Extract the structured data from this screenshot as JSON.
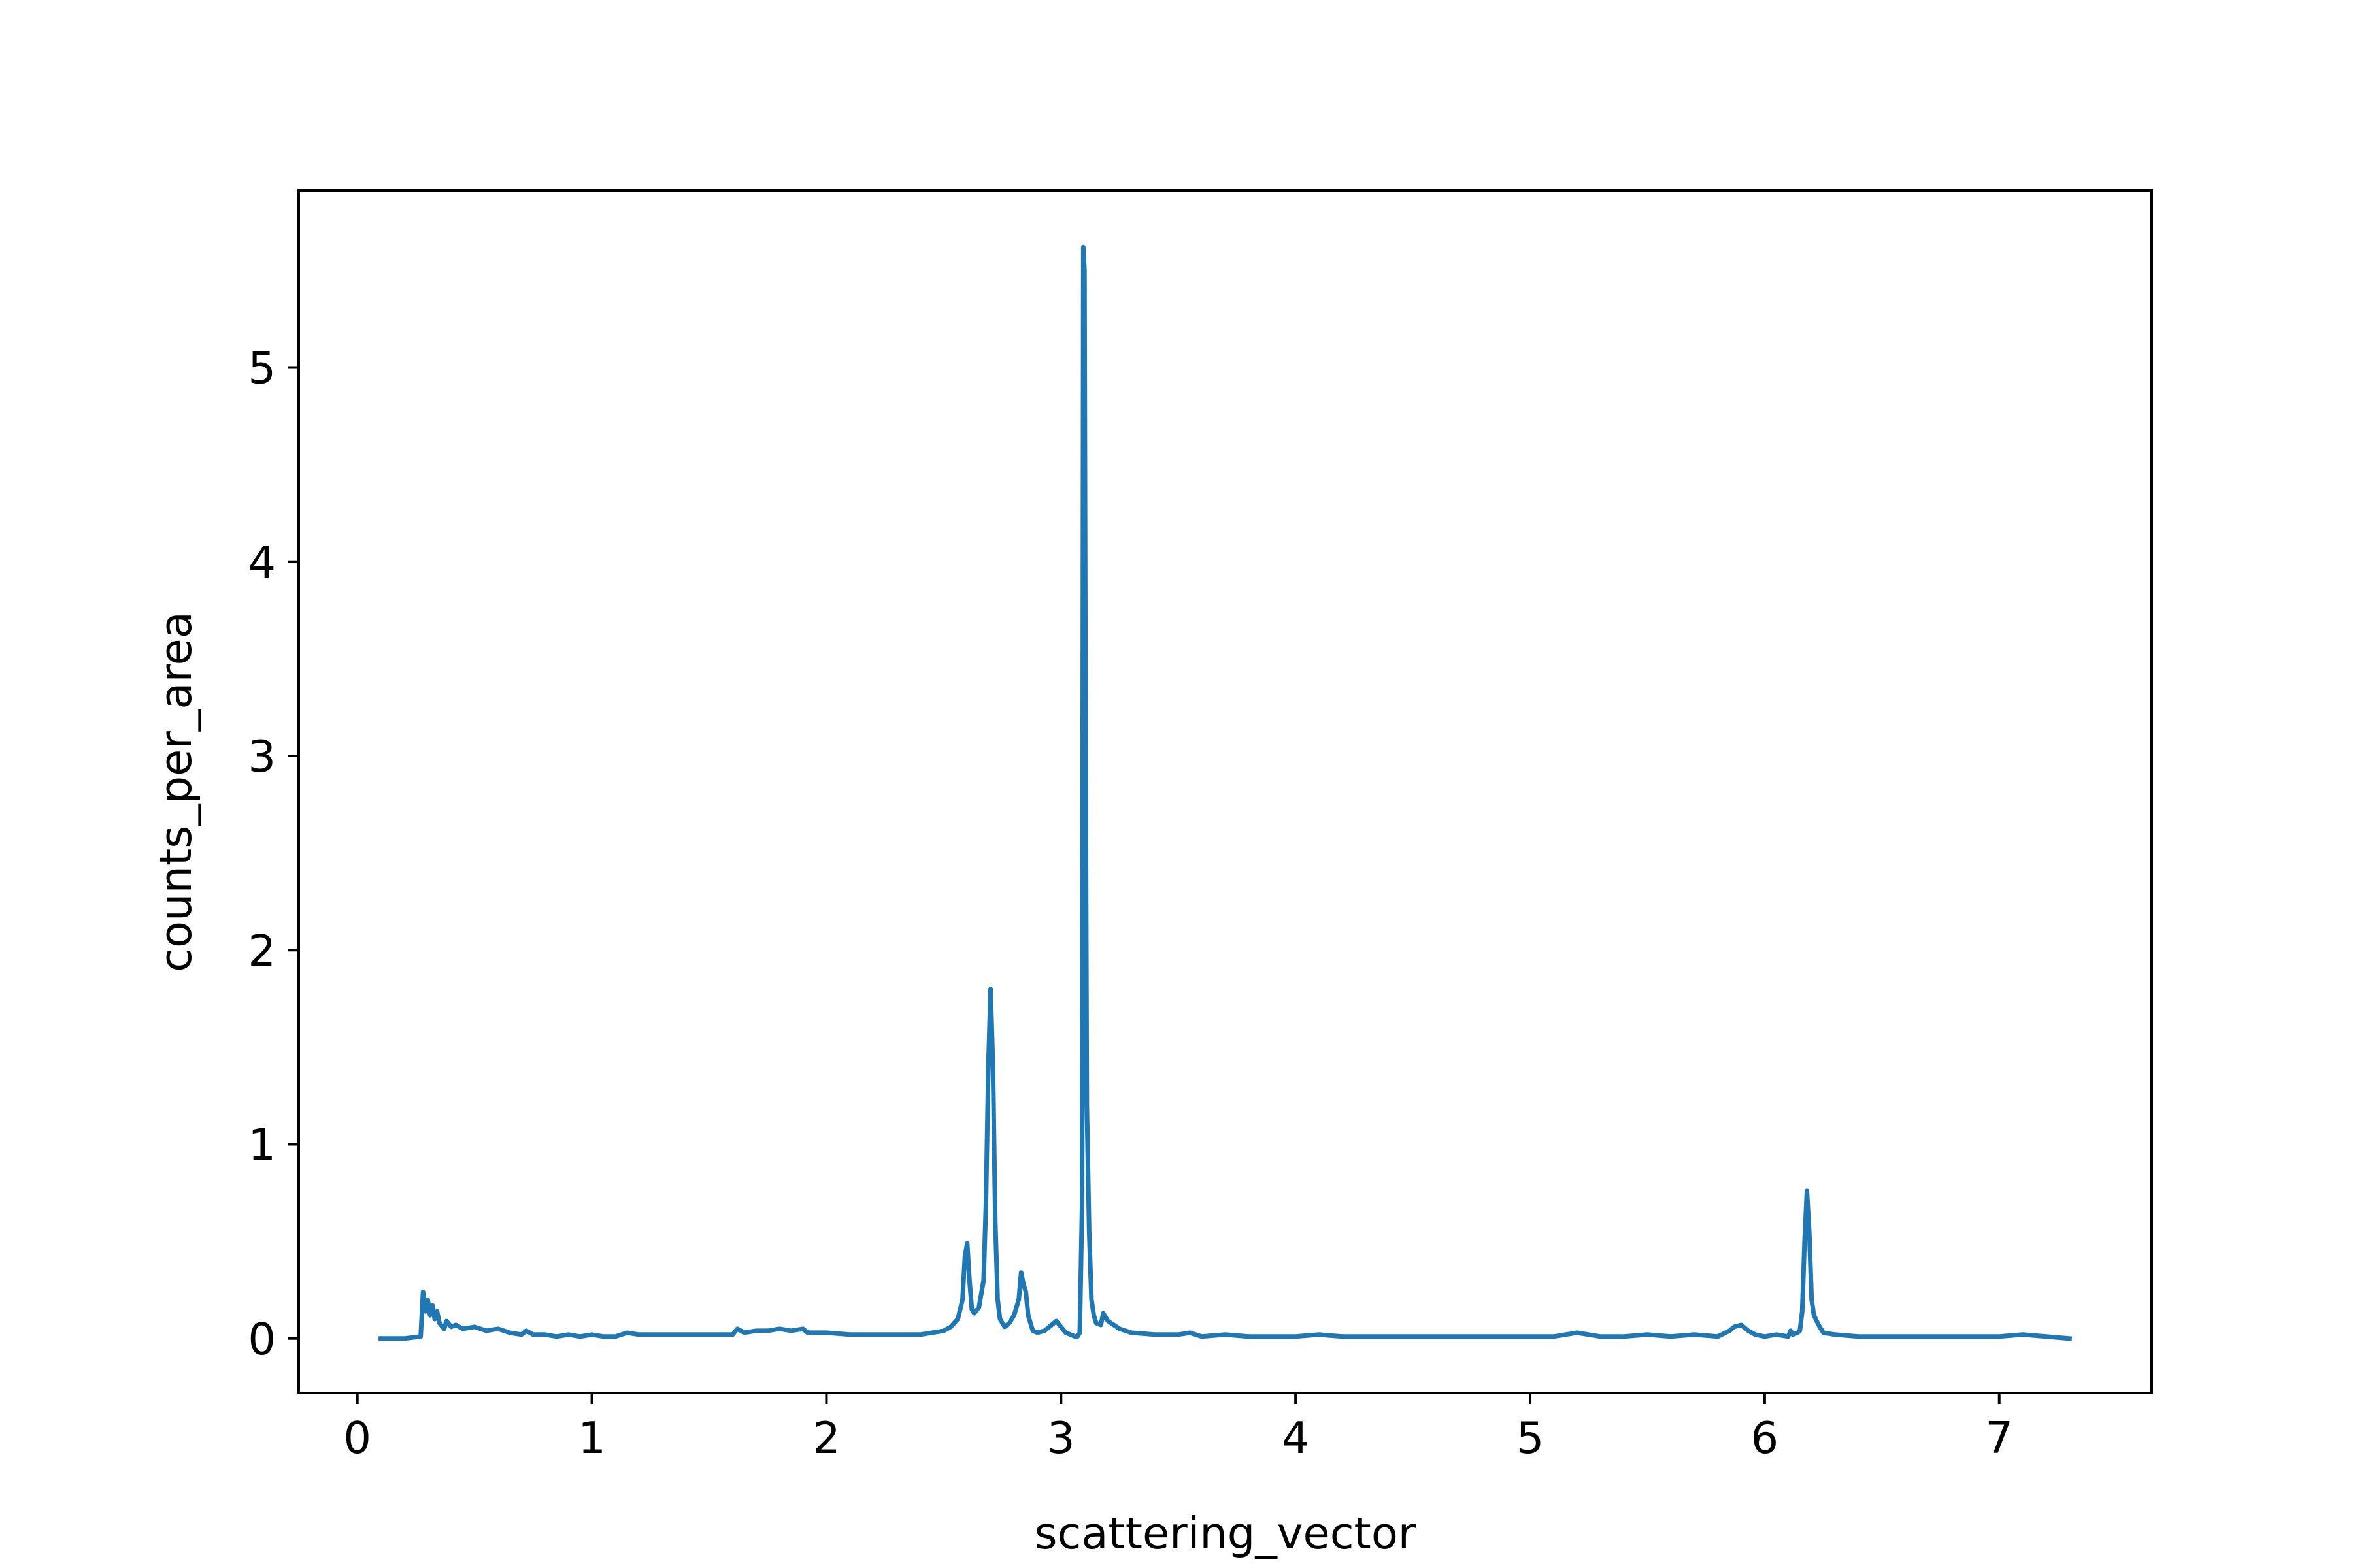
{
  "chart_data": {
    "type": "line",
    "title": "",
    "xlabel": "scattering_vector",
    "ylabel": "counts_per_area",
    "xlim": [
      -0.25,
      7.65
    ],
    "ylim": [
      -0.28,
      5.91
    ],
    "x_ticks": [
      0,
      1,
      2,
      3,
      4,
      5,
      6,
      7
    ],
    "x_tick_labels": [
      "0",
      "1",
      "2",
      "3",
      "4",
      "5",
      "6",
      "7"
    ],
    "y_ticks": [
      0,
      1,
      2,
      3,
      4,
      5
    ],
    "y_tick_labels": [
      "0",
      "1",
      "2",
      "3",
      "4",
      "5"
    ],
    "grid": false,
    "legend": "none",
    "series_color": "#1f77b4",
    "series": [
      {
        "x": [
          0.1,
          0.2,
          0.27,
          0.28,
          0.29,
          0.3,
          0.31,
          0.32,
          0.33,
          0.34,
          0.35,
          0.37,
          0.38,
          0.4,
          0.42,
          0.45,
          0.5,
          0.55,
          0.6,
          0.65,
          0.7,
          0.72,
          0.75,
          0.8,
          0.85,
          0.9,
          0.95,
          1.0,
          1.05,
          1.1,
          1.15,
          1.2,
          1.3,
          1.4,
          1.5,
          1.6,
          1.62,
          1.65,
          1.7,
          1.75,
          1.8,
          1.85,
          1.9,
          1.92,
          1.95,
          2.0,
          2.1,
          2.2,
          2.3,
          2.4,
          2.45,
          2.5,
          2.53,
          2.56,
          2.58,
          2.59,
          2.6,
          2.61,
          2.62,
          2.63,
          2.65,
          2.67,
          2.68,
          2.69,
          2.7,
          2.71,
          2.72,
          2.73,
          2.74,
          2.76,
          2.78,
          2.8,
          2.82,
          2.83,
          2.84,
          2.85,
          2.86,
          2.87,
          2.88,
          2.9,
          2.93,
          2.96,
          2.98,
          3.0,
          3.02,
          3.04,
          3.06,
          3.07,
          3.08,
          3.09,
          3.095,
          3.1,
          3.105,
          3.11,
          3.12,
          3.13,
          3.14,
          3.15,
          3.17,
          3.18,
          3.2,
          3.25,
          3.3,
          3.4,
          3.5,
          3.55,
          3.6,
          3.7,
          3.8,
          4.0,
          4.1,
          4.2,
          4.5,
          4.8,
          5.0,
          5.1,
          5.2,
          5.3,
          5.4,
          5.5,
          5.6,
          5.7,
          5.8,
          5.85,
          5.87,
          5.9,
          5.93,
          5.96,
          6.0,
          6.05,
          6.1,
          6.11,
          6.12,
          6.14,
          6.15,
          6.16,
          6.17,
          6.18,
          6.19,
          6.2,
          6.21,
          6.23,
          6.25,
          6.3,
          6.4,
          6.5,
          6.6,
          6.8,
          7.0,
          7.1,
          7.2,
          7.3
        ],
        "y": [
          0.0,
          0.0,
          0.01,
          0.24,
          0.14,
          0.2,
          0.12,
          0.17,
          0.1,
          0.14,
          0.08,
          0.05,
          0.09,
          0.06,
          0.07,
          0.05,
          0.06,
          0.04,
          0.05,
          0.03,
          0.02,
          0.04,
          0.02,
          0.02,
          0.01,
          0.02,
          0.01,
          0.02,
          0.01,
          0.01,
          0.03,
          0.02,
          0.02,
          0.02,
          0.02,
          0.02,
          0.05,
          0.03,
          0.04,
          0.04,
          0.05,
          0.04,
          0.05,
          0.03,
          0.03,
          0.03,
          0.02,
          0.02,
          0.02,
          0.02,
          0.03,
          0.04,
          0.06,
          0.1,
          0.2,
          0.42,
          0.49,
          0.3,
          0.15,
          0.13,
          0.16,
          0.3,
          0.7,
          1.4,
          1.8,
          1.4,
          0.6,
          0.2,
          0.1,
          0.06,
          0.08,
          0.12,
          0.2,
          0.34,
          0.28,
          0.24,
          0.12,
          0.08,
          0.04,
          0.03,
          0.04,
          0.07,
          0.09,
          0.06,
          0.03,
          0.02,
          0.01,
          0.01,
          0.03,
          0.7,
          5.62,
          5.5,
          3.0,
          1.2,
          0.55,
          0.2,
          0.12,
          0.08,
          0.07,
          0.13,
          0.09,
          0.05,
          0.03,
          0.02,
          0.02,
          0.03,
          0.01,
          0.02,
          0.01,
          0.01,
          0.02,
          0.01,
          0.01,
          0.01,
          0.01,
          0.01,
          0.03,
          0.01,
          0.01,
          0.02,
          0.01,
          0.02,
          0.01,
          0.04,
          0.06,
          0.07,
          0.04,
          0.02,
          0.01,
          0.02,
          0.01,
          0.04,
          0.02,
          0.03,
          0.04,
          0.14,
          0.5,
          0.76,
          0.55,
          0.2,
          0.12,
          0.07,
          0.03,
          0.02,
          0.01,
          0.01,
          0.01,
          0.01,
          0.01,
          0.02,
          0.01,
          0.0
        ]
      }
    ]
  }
}
